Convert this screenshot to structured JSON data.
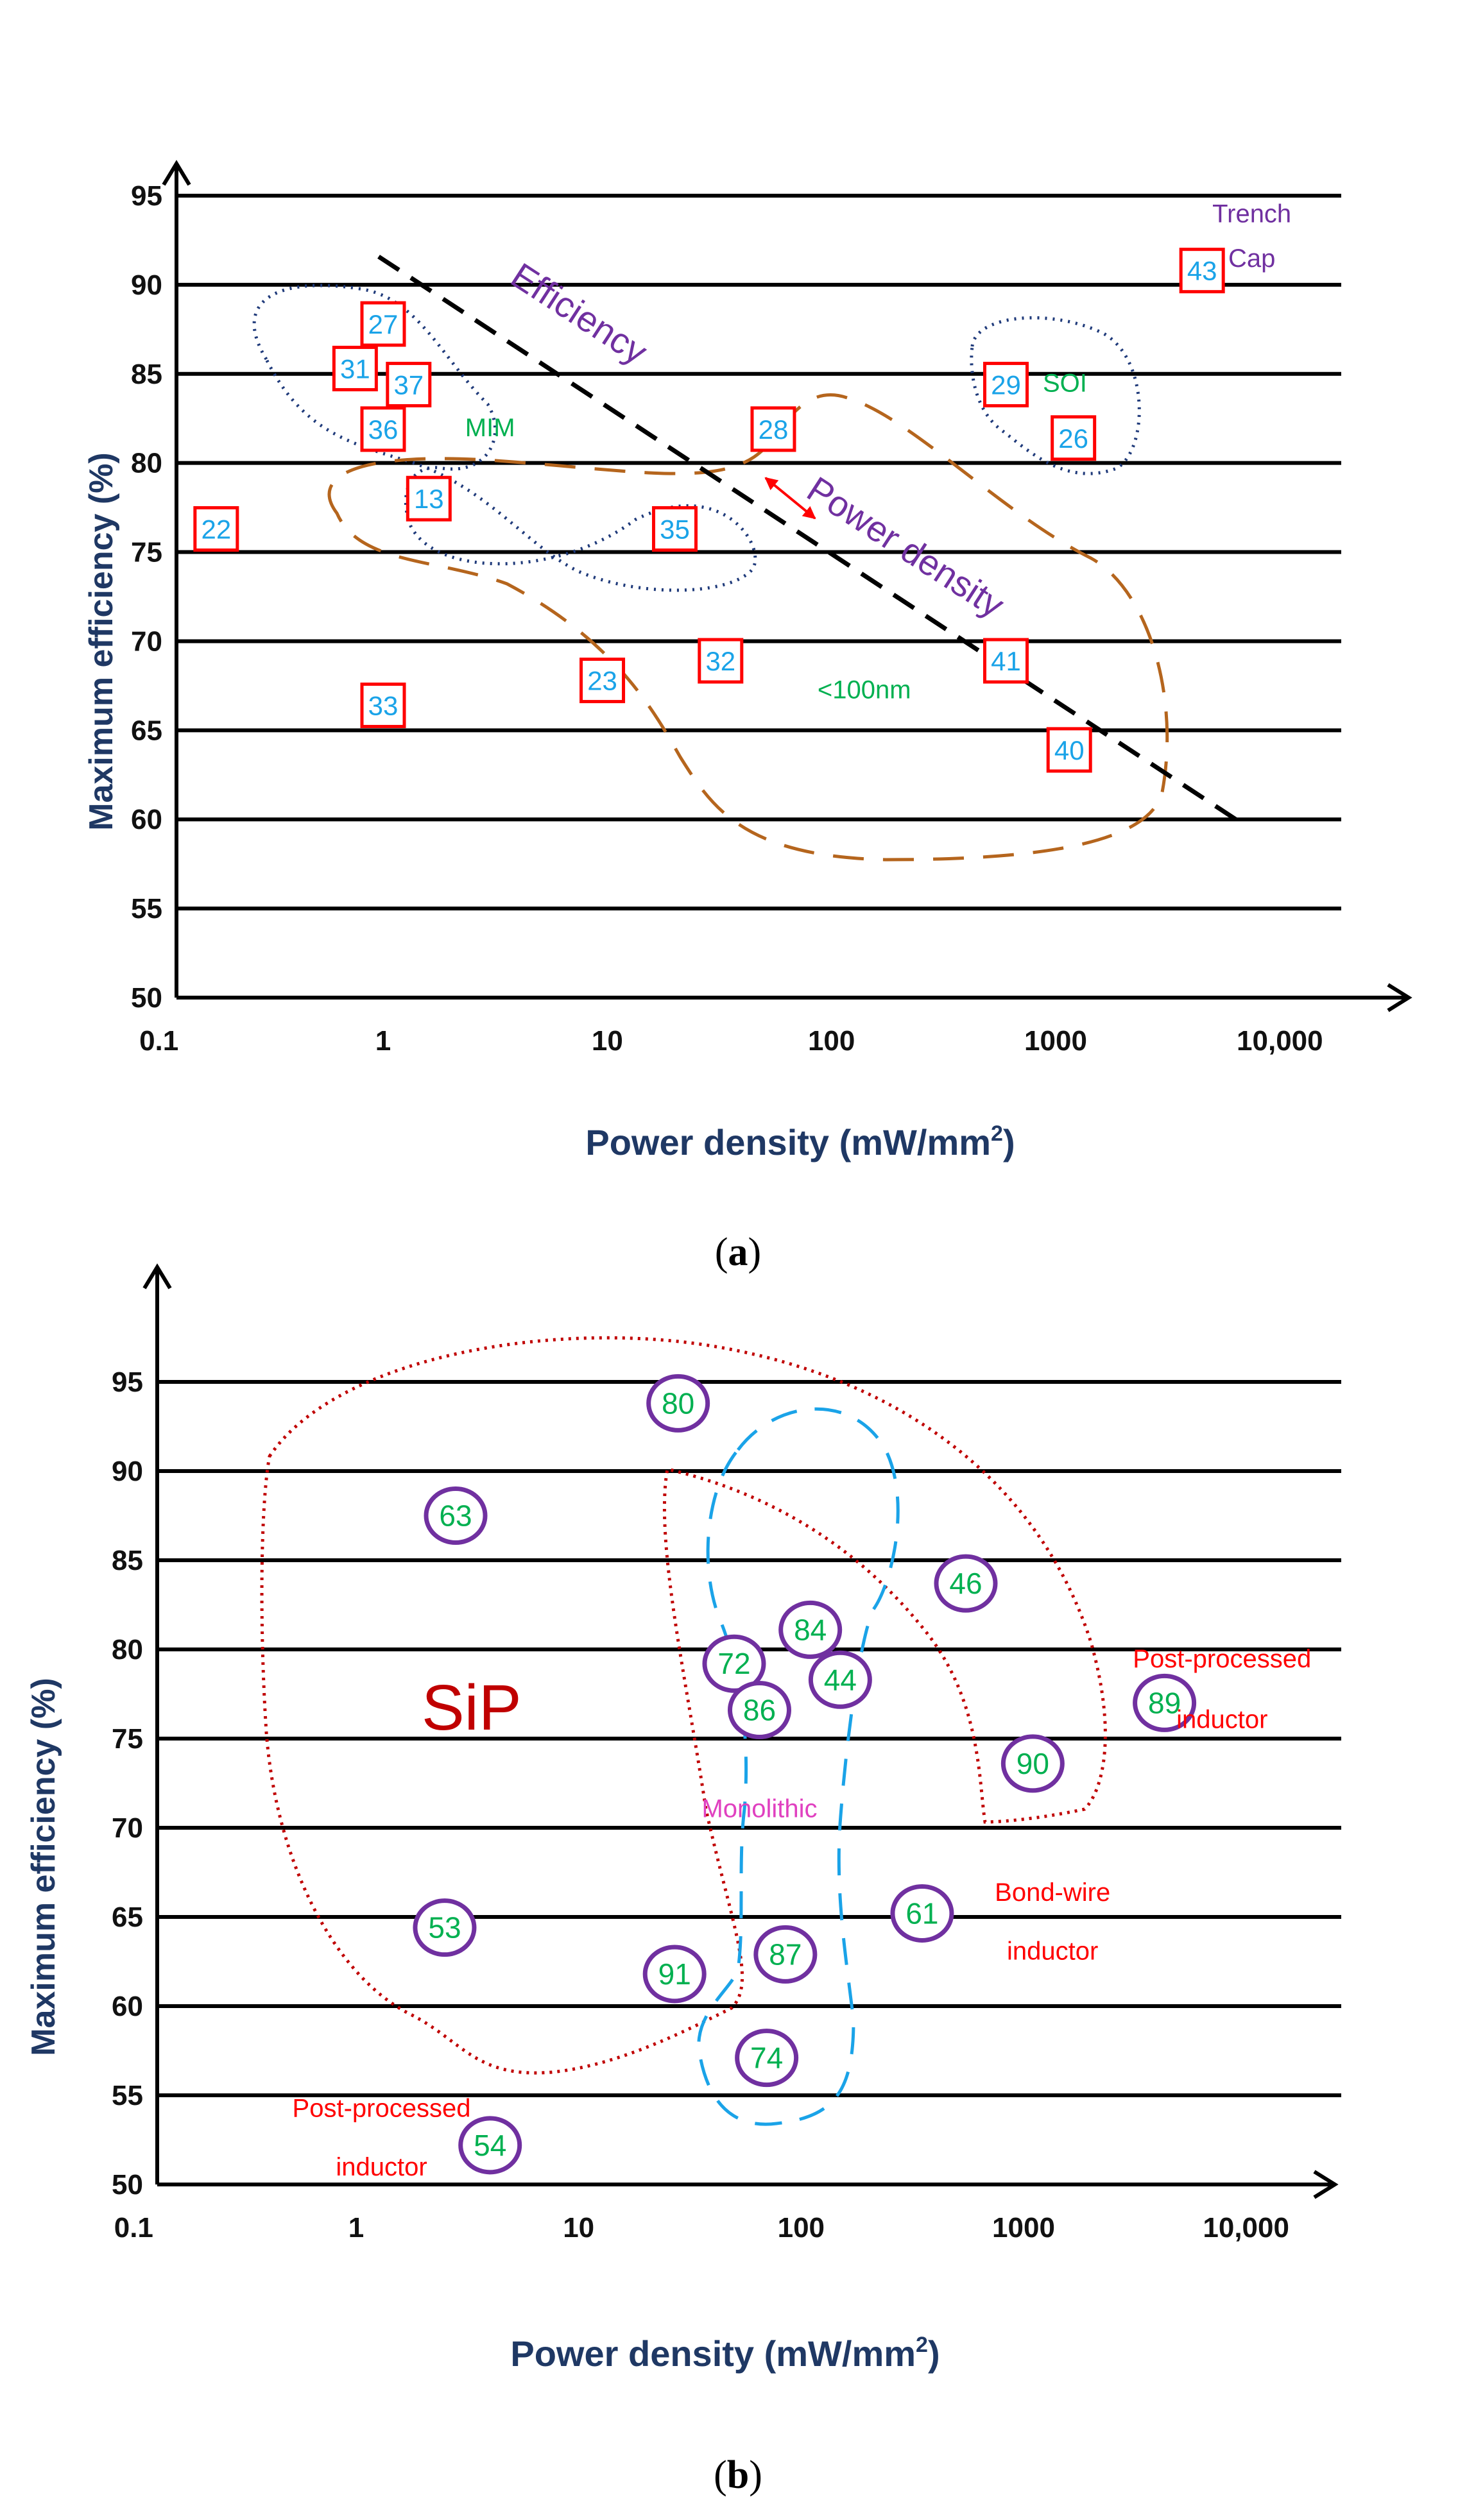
{
  "colors": {
    "axis": "#000000",
    "axis_title": "#1f3864",
    "square_marker": "#ff0000",
    "square_label": "#1aa3e8",
    "circle_marker": "#7030a0",
    "circle_label": "#00b050",
    "purple_text": "#7030a0",
    "green_text": "#00b050",
    "brown_dash": "#b5651d",
    "navy_dot": "#1f3a7a",
    "sip_red": "#c00000",
    "red_text": "#ff0000",
    "cyan_dash": "#1aa3e8",
    "magenta_text": "#e040c0"
  },
  "chart_data": [
    {
      "id": "a",
      "type": "scatter",
      "caption": "(a)",
      "marker": "square",
      "xlabel_main": "Power density (mW/mm",
      "xlabel_sup": "2",
      "xlabel_end": ")",
      "ylabel": "Maximum efficiency (%)",
      "xscale": "log",
      "xlim": [
        0.1,
        20000
      ],
      "ylim": [
        50,
        95
      ],
      "xticks": [
        0.1,
        1,
        10,
        100,
        1000,
        10000
      ],
      "xtick_labels": [
        "0.1",
        "1",
        "10",
        "100",
        "1000",
        "10,000"
      ],
      "yticks": [
        50,
        55,
        60,
        65,
        70,
        75,
        80,
        85,
        90,
        95
      ],
      "ytick_labels": [
        "50",
        "55",
        "60",
        "65",
        "70",
        "75",
        "80",
        "85",
        "90",
        "95"
      ],
      "points": [
        {
          "label": "43",
          "x": 4500,
          "y": 90.8
        },
        {
          "label": "27",
          "x": 1.0,
          "y": 87.8
        },
        {
          "label": "31",
          "x": 0.75,
          "y": 85.3
        },
        {
          "label": "37",
          "x": 1.3,
          "y": 84.4
        },
        {
          "label": "36",
          "x": 1.0,
          "y": 81.9
        },
        {
          "label": "13",
          "x": 1.6,
          "y": 78.0
        },
        {
          "label": "22",
          "x": 0.18,
          "y": 76.3
        },
        {
          "label": "35",
          "x": 20,
          "y": 76.3
        },
        {
          "label": "28",
          "x": 55,
          "y": 81.9
        },
        {
          "label": "29",
          "x": 600,
          "y": 84.4
        },
        {
          "label": "26",
          "x": 1200,
          "y": 81.4
        },
        {
          "label": "33",
          "x": 1.0,
          "y": 66.4
        },
        {
          "label": "23",
          "x": 9.5,
          "y": 67.8
        },
        {
          "label": "32",
          "x": 32,
          "y": 68.9
        },
        {
          "label": "41",
          "x": 600,
          "y": 68.9
        },
        {
          "label": "40",
          "x": 1150,
          "y": 63.9
        }
      ],
      "annotations": [
        {
          "text": "Trench",
          "x": 7500,
          "y": 93.5,
          "color": "purple_text",
          "size": 40
        },
        {
          "text": "Cap",
          "x": 7500,
          "y": 91.0,
          "color": "purple_text",
          "size": 40
        },
        {
          "text": "SOI",
          "x": 1100,
          "y": 84.0,
          "color": "green_text",
          "size": 40
        },
        {
          "text": "MIM",
          "x": 3.0,
          "y": 81.5,
          "color": "green_text",
          "size": 40
        },
        {
          "text": "<100nm",
          "x": 140,
          "y": 66.8,
          "color": "green_text",
          "size": 40
        },
        {
          "text": "Efficiency",
          "x": 7,
          "y": 87.8,
          "color": "purple_text",
          "size": 56,
          "rotate": 33
        },
        {
          "text": "Power density",
          "x": 200,
          "y": 74.7,
          "color": "purple_text",
          "size": 56,
          "rotate": 33
        }
      ]
    },
    {
      "id": "b",
      "type": "scatter",
      "caption": "(b)",
      "marker": "circle",
      "xlabel_main": "Power density (mW/mm",
      "xlabel_sup": "2",
      "xlabel_end": ")",
      "ylabel": "Maximum  efficiency (%)",
      "xscale": "log",
      "xlim": [
        0.1,
        20000
      ],
      "ylim": [
        50,
        95
      ],
      "xticks": [
        0.1,
        1,
        10,
        100,
        1000,
        10000
      ],
      "xtick_labels": [
        "0.1",
        "1",
        "10",
        "100",
        "1000",
        "10,000"
      ],
      "yticks": [
        50,
        55,
        60,
        65,
        70,
        75,
        80,
        85,
        90,
        95
      ],
      "ytick_labels": [
        "50",
        "55",
        "60",
        "65",
        "70",
        "75",
        "80",
        "85",
        "90",
        "95"
      ],
      "points": [
        {
          "label": "80",
          "x": 28,
          "y": 93.8
        },
        {
          "label": "63",
          "x": 2.8,
          "y": 87.5
        },
        {
          "label": "46",
          "x": 550,
          "y": 83.7
        },
        {
          "label": "84",
          "x": 110,
          "y": 81.1
        },
        {
          "label": "72",
          "x": 50,
          "y": 79.2
        },
        {
          "label": "44",
          "x": 150,
          "y": 78.3
        },
        {
          "label": "86",
          "x": 65,
          "y": 76.6
        },
        {
          "label": "89",
          "x": 4300,
          "y": 77.0
        },
        {
          "label": "90",
          "x": 1100,
          "y": 73.6
        },
        {
          "label": "61",
          "x": 350,
          "y": 65.2
        },
        {
          "label": "53",
          "x": 2.5,
          "y": 64.4
        },
        {
          "label": "87",
          "x": 85,
          "y": 62.9
        },
        {
          "label": "91",
          "x": 27,
          "y": 61.8
        },
        {
          "label": "74",
          "x": 70,
          "y": 57.1
        },
        {
          "label": "54",
          "x": 4.0,
          "y": 52.2
        }
      ],
      "annotations": [
        {
          "text": "SiP",
          "x": 3.3,
          "y": 75.5,
          "color": "sip_red",
          "size": 100
        },
        {
          "text": "Monolithic",
          "x": 65,
          "y": 70.6,
          "color": "magenta_text",
          "size": 40
        },
        {
          "text": "Post-processed",
          "x": 7800,
          "y": 79.0,
          "color": "red_text",
          "size": 40
        },
        {
          "text": "inductor",
          "x": 7800,
          "y": 75.6,
          "color": "red_text",
          "size": 40
        },
        {
          "text": "Bond-wire",
          "x": 1350,
          "y": 65.9,
          "color": "red_text",
          "size": 40
        },
        {
          "text": "inductor",
          "x": 1350,
          "y": 62.6,
          "color": "red_text",
          "size": 40
        },
        {
          "text": "Post-processed",
          "x": 1.3,
          "y": 53.8,
          "color": "red_text",
          "size": 40
        },
        {
          "text": "inductor",
          "x": 1.3,
          "y": 50.5,
          "color": "red_text",
          "size": 40
        }
      ]
    }
  ]
}
